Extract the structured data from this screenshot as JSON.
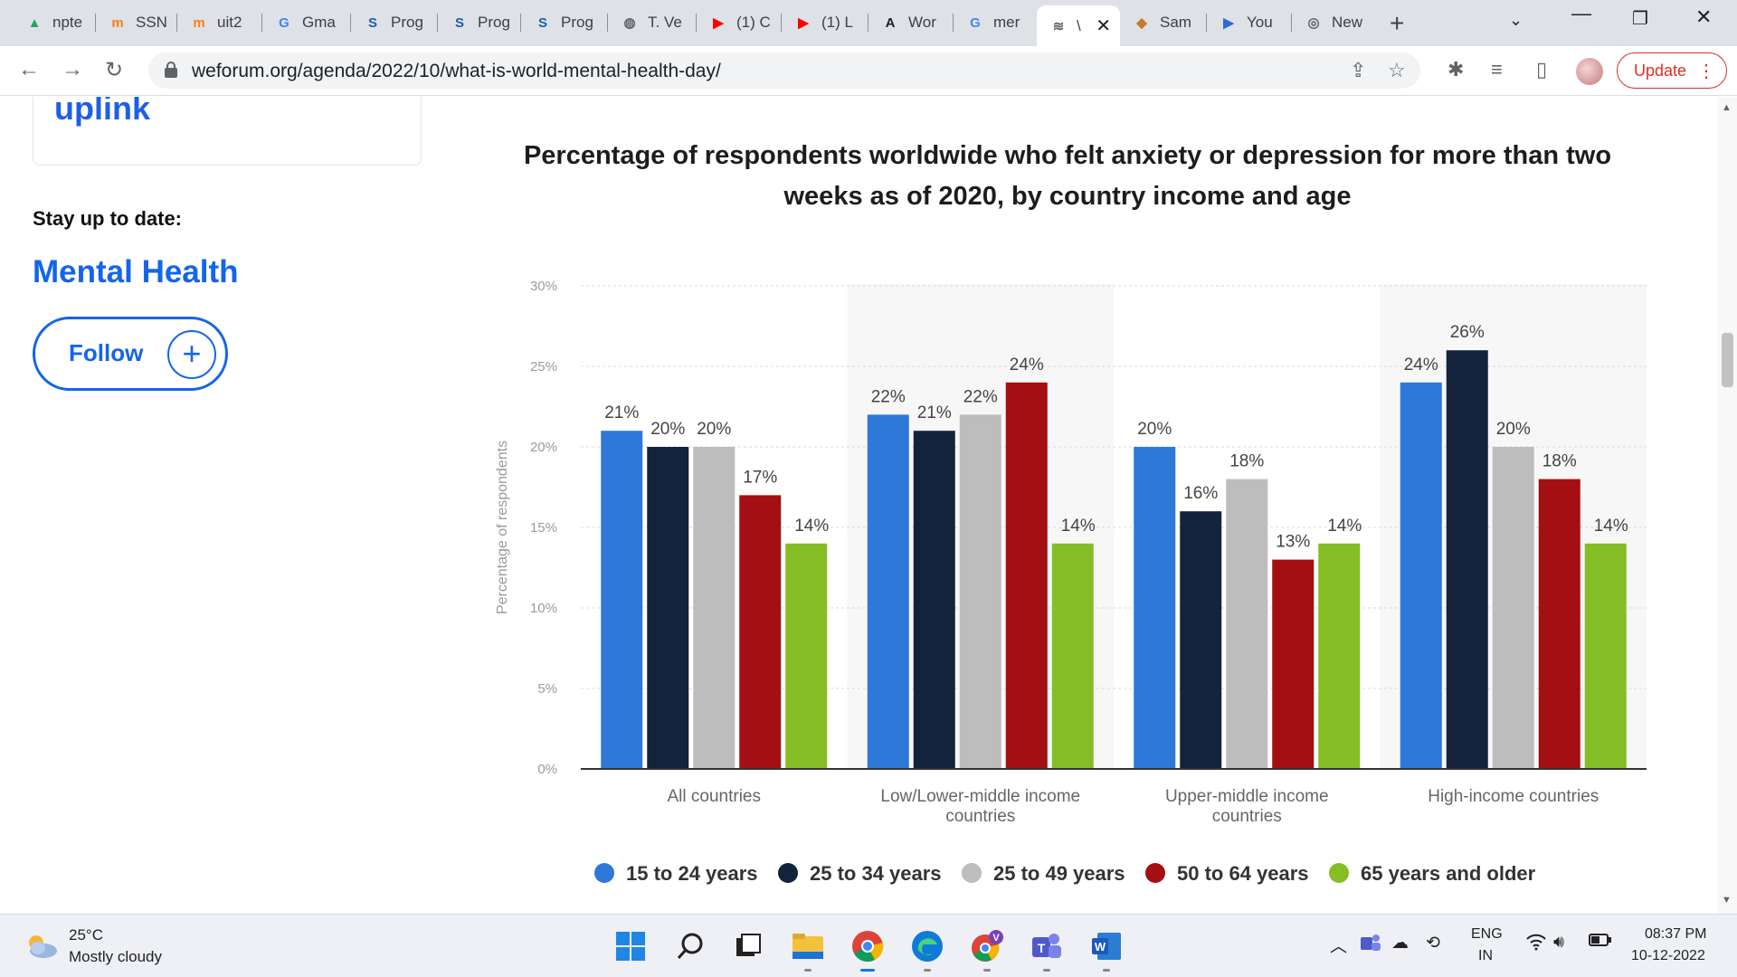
{
  "browser": {
    "tabs": [
      {
        "title": "npte",
        "icon": "google-drive-icon"
      },
      {
        "title": "SSN",
        "icon": "moodle-icon"
      },
      {
        "title": "uit2",
        "icon": "moodle-icon"
      },
      {
        "title": "Gma",
        "icon": "google-icon"
      },
      {
        "title": "Prog",
        "icon": "s-logo-icon"
      },
      {
        "title": "Prog",
        "icon": "s-logo-icon"
      },
      {
        "title": "Prog",
        "icon": "s-logo-icon"
      },
      {
        "title": "T. Ve",
        "icon": "globe-icon"
      },
      {
        "title": "(1) C",
        "icon": "youtube-icon"
      },
      {
        "title": "(1) L",
        "icon": "youtube-icon"
      },
      {
        "title": "Wor",
        "icon": "a-logo-icon"
      },
      {
        "title": "mer",
        "icon": "google-icon"
      },
      {
        "title": "\\",
        "icon": "weforum-icon",
        "active": true
      },
      {
        "title": "Sam",
        "icon": "samsung-icon"
      },
      {
        "title": "You",
        "icon": "play-icon"
      },
      {
        "title": "New",
        "icon": "chrome-icon"
      }
    ],
    "url": "weforum.org/agenda/2022/10/what-is-world-mental-health-day/",
    "update_label": "Update"
  },
  "page": {
    "card_label": "uplink",
    "stay_label": "Stay up to date:",
    "topic": "Mental Health",
    "follow_label": "Follow"
  },
  "chart_data": {
    "type": "bar",
    "title": "Percentage of respondents worldwide who felt anxiety or depression for more than two weeks as of 2020, by country income and age",
    "ylabel": "Percentage of respondents",
    "xlabel": "",
    "ylim": [
      0,
      30
    ],
    "yticks": [
      "0%",
      "5%",
      "10%",
      "15%",
      "20%",
      "25%",
      "30%"
    ],
    "categories": [
      "All countries",
      "Low/Lower-middle income countries",
      "Upper-middle income countries",
      "High-income countries"
    ],
    "series": [
      {
        "name": "15 to 24 years",
        "color": "#2d78d8",
        "values": [
          21,
          22,
          20,
          24
        ],
        "labels": [
          "21%",
          "22%",
          "20%",
          "24%"
        ]
      },
      {
        "name": "25 to 34 years",
        "color": "#13233b",
        "values": [
          20,
          21,
          16,
          26
        ],
        "labels": [
          "20%",
          "21%",
          "16%",
          "26%"
        ]
      },
      {
        "name": "25 to 49 years",
        "color": "#bdbdbd",
        "values": [
          20,
          22,
          18,
          20
        ],
        "labels": [
          "20%",
          "22%",
          "18%",
          "20%"
        ]
      },
      {
        "name": "50 to 64 years",
        "color": "#a30f12",
        "values": [
          17,
          24,
          13,
          18
        ],
        "labels": [
          "17%",
          "24%",
          "13%",
          "18%"
        ]
      },
      {
        "name": "65 years and older",
        "color": "#84be24",
        "values": [
          14,
          14,
          14,
          14
        ],
        "labels": [
          "14%",
          "14%",
          "14%",
          "14%"
        ]
      }
    ],
    "grid": true,
    "legend": "bottom"
  },
  "taskbar": {
    "temperature": "25°C",
    "weather": "Mostly cloudy",
    "lang_top": "ENG",
    "lang_bottom": "IN",
    "time": "08:37 PM",
    "date": "10-12-2022"
  }
}
